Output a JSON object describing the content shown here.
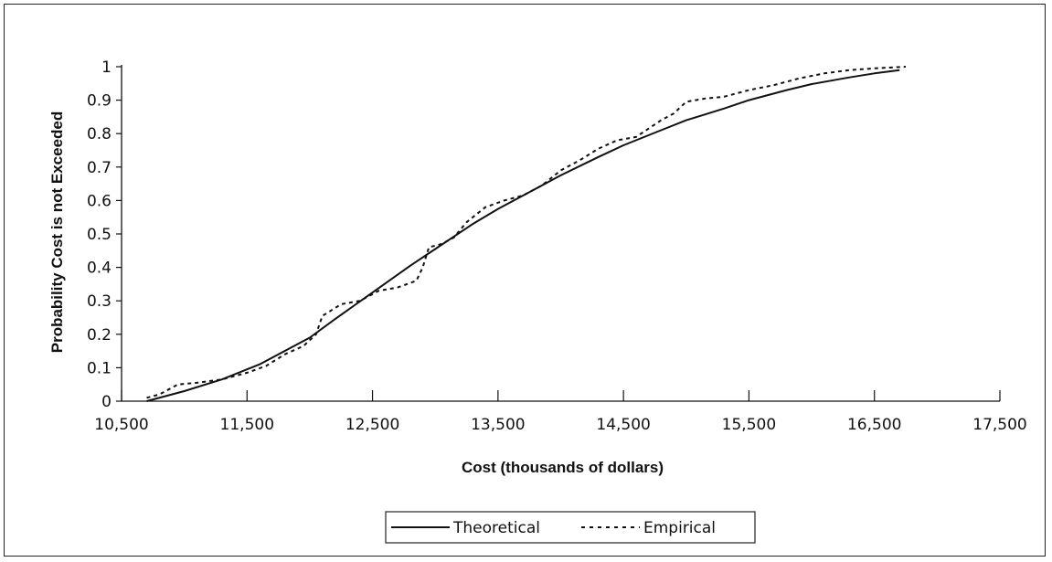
{
  "chart_data": {
    "type": "line",
    "xlabel": "Cost (thousands of dollars)",
    "ylabel": "Probability Cost is not Exceeded",
    "xlim": [
      10500,
      17500
    ],
    "ylim": [
      0,
      1
    ],
    "x_ticks": [
      "10,500",
      "11,500",
      "12,500",
      "13,500",
      "14,500",
      "15,500",
      "16,500",
      "17,500"
    ],
    "y_ticks": [
      "0",
      "0.1",
      "0.2",
      "0.3",
      "0.4",
      "0.5",
      "0.6",
      "0.7",
      "0.8",
      "0.9",
      "1"
    ],
    "grid": false,
    "legend_position": "bottom",
    "series": [
      {
        "name": "Theoretical",
        "style": "solid",
        "color": "#111111",
        "x": [
          10700,
          11000,
          11300,
          11600,
          12000,
          12200,
          12500,
          12800,
          13000,
          13300,
          13500,
          13800,
          14000,
          14300,
          14500,
          14800,
          15000,
          15300,
          15500,
          15800,
          16000,
          16300,
          16500,
          16700
        ],
        "y": [
          0.0,
          0.03,
          0.065,
          0.11,
          0.19,
          0.245,
          0.325,
          0.405,
          0.455,
          0.53,
          0.575,
          0.635,
          0.675,
          0.73,
          0.765,
          0.81,
          0.84,
          0.875,
          0.9,
          0.93,
          0.948,
          0.968,
          0.98,
          0.99
        ]
      },
      {
        "name": "Empirical",
        "style": "dashed",
        "color": "#111111",
        "x": [
          10700,
          10800,
          10950,
          11100,
          11300,
          11500,
          11650,
          11800,
          11950,
          12050,
          12100,
          12250,
          12400,
          12550,
          12700,
          12850,
          12900,
          12950,
          13050,
          13150,
          13250,
          13400,
          13550,
          13700,
          13850,
          14000,
          14150,
          14300,
          14450,
          14600,
          14800,
          14900,
          15000,
          15150,
          15300,
          15500,
          15700,
          15900,
          16100,
          16300,
          16500,
          16750
        ],
        "y": [
          0.01,
          0.02,
          0.05,
          0.055,
          0.065,
          0.085,
          0.105,
          0.14,
          0.165,
          0.2,
          0.255,
          0.29,
          0.3,
          0.33,
          0.34,
          0.36,
          0.4,
          0.46,
          0.47,
          0.49,
          0.535,
          0.58,
          0.6,
          0.615,
          0.645,
          0.69,
          0.72,
          0.755,
          0.78,
          0.79,
          0.84,
          0.86,
          0.895,
          0.905,
          0.91,
          0.93,
          0.945,
          0.965,
          0.98,
          0.99,
          0.995,
          1.0
        ]
      }
    ]
  }
}
